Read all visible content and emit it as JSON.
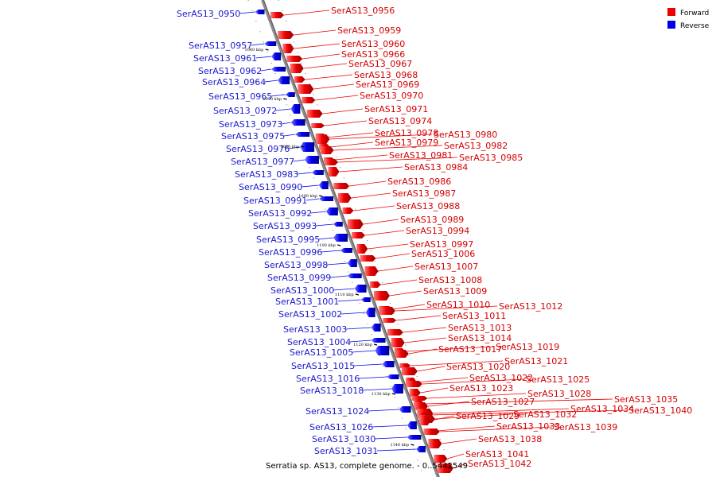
{
  "caption": "Serratia sp. AS13, complete genome. - 0..5442549",
  "legend": [
    {
      "label": "Forward",
      "color": "#ee0000"
    },
    {
      "label": "Reverse",
      "color": "#0000ee"
    }
  ],
  "colors": {
    "forward": "#ee0000",
    "reverse": "#0000ee",
    "backbone": "#8c8c8c"
  },
  "kbp_ticks": [
    "1060 kbp",
    "1070 kbp",
    "1080 kbp",
    "1090 kbp",
    "1100 kbp",
    "1110 kbp",
    "1120 kbp",
    "1130 kbp",
    "1140 kbp"
  ],
  "genes": [
    {
      "name": "SerAS13_0950",
      "strand": "reverse"
    },
    {
      "name": "SerAS13_0956",
      "strand": "forward"
    },
    {
      "name": "SerAS13_0959",
      "strand": "forward"
    },
    {
      "name": "SerAS13_0960",
      "strand": "forward"
    },
    {
      "name": "SerAS13_0957",
      "strand": "reverse"
    },
    {
      "name": "SerAS13_0966",
      "strand": "forward"
    },
    {
      "name": "SerAS13_0961",
      "strand": "reverse"
    },
    {
      "name": "SerAS13_0967",
      "strand": "forward"
    },
    {
      "name": "SerAS13_0962",
      "strand": "reverse"
    },
    {
      "name": "SerAS13_0968",
      "strand": "forward"
    },
    {
      "name": "SerAS13_0964",
      "strand": "reverse"
    },
    {
      "name": "SerAS13_0969",
      "strand": "forward"
    },
    {
      "name": "SerAS13_0965",
      "strand": "reverse"
    },
    {
      "name": "SerAS13_0970",
      "strand": "forward"
    },
    {
      "name": "SerAS13_0971",
      "strand": "forward"
    },
    {
      "name": "SerAS13_0972",
      "strand": "reverse"
    },
    {
      "name": "SerAS13_0974",
      "strand": "forward"
    },
    {
      "name": "SerAS13_0973",
      "strand": "reverse"
    },
    {
      "name": "SerAS13_0978",
      "strand": "forward"
    },
    {
      "name": "SerAS13_0980",
      "strand": "forward"
    },
    {
      "name": "SerAS13_0975",
      "strand": "reverse"
    },
    {
      "name": "SerAS13_0979",
      "strand": "forward"
    },
    {
      "name": "SerAS13_0982",
      "strand": "forward"
    },
    {
      "name": "SerAS13_0976",
      "strand": "reverse"
    },
    {
      "name": "SerAS13_0981",
      "strand": "forward"
    },
    {
      "name": "SerAS13_0985",
      "strand": "forward"
    },
    {
      "name": "SerAS13_0977",
      "strand": "reverse"
    },
    {
      "name": "SerAS13_0984",
      "strand": "forward"
    },
    {
      "name": "SerAS13_0983",
      "strand": "reverse"
    },
    {
      "name": "SerAS13_0986",
      "strand": "forward"
    },
    {
      "name": "SerAS13_0990",
      "strand": "reverse"
    },
    {
      "name": "SerAS13_0987",
      "strand": "forward"
    },
    {
      "name": "SerAS13_0991",
      "strand": "reverse"
    },
    {
      "name": "SerAS13_0988",
      "strand": "forward"
    },
    {
      "name": "SerAS13_0992",
      "strand": "reverse"
    },
    {
      "name": "SerAS13_0989",
      "strand": "forward"
    },
    {
      "name": "SerAS13_0993",
      "strand": "reverse"
    },
    {
      "name": "SerAS13_0994",
      "strand": "forward"
    },
    {
      "name": "SerAS13_0995",
      "strand": "reverse"
    },
    {
      "name": "SerAS13_0997",
      "strand": "forward"
    },
    {
      "name": "SerAS13_0996",
      "strand": "reverse"
    },
    {
      "name": "SerAS13_1006",
      "strand": "forward"
    },
    {
      "name": "SerAS13_0998",
      "strand": "reverse"
    },
    {
      "name": "SerAS13_1007",
      "strand": "forward"
    },
    {
      "name": "SerAS13_0999",
      "strand": "reverse"
    },
    {
      "name": "SerAS13_1008",
      "strand": "forward"
    },
    {
      "name": "SerAS13_1000",
      "strand": "reverse"
    },
    {
      "name": "SerAS13_1009",
      "strand": "forward"
    },
    {
      "name": "SerAS13_1001",
      "strand": "reverse"
    },
    {
      "name": "SerAS13_1010",
      "strand": "forward"
    },
    {
      "name": "SerAS13_1012",
      "strand": "forward"
    },
    {
      "name": "SerAS13_1002",
      "strand": "reverse"
    },
    {
      "name": "SerAS13_1011",
      "strand": "forward"
    },
    {
      "name": "SerAS13_1013",
      "strand": "forward"
    },
    {
      "name": "SerAS13_1003",
      "strand": "reverse"
    },
    {
      "name": "SerAS13_1014",
      "strand": "forward"
    },
    {
      "name": "SerAS13_1004",
      "strand": "reverse"
    },
    {
      "name": "SerAS13_1019",
      "strand": "forward"
    },
    {
      "name": "SerAS13_1017",
      "strand": "forward"
    },
    {
      "name": "SerAS13_1005",
      "strand": "reverse"
    },
    {
      "name": "SerAS13_1021",
      "strand": "forward"
    },
    {
      "name": "SerAS13_1015",
      "strand": "reverse"
    },
    {
      "name": "SerAS13_1020",
      "strand": "forward"
    },
    {
      "name": "SerAS13_1022",
      "strand": "forward"
    },
    {
      "name": "SerAS13_1016",
      "strand": "reverse"
    },
    {
      "name": "SerAS13_1025",
      "strand": "forward"
    },
    {
      "name": "SerAS13_1023",
      "strand": "forward"
    },
    {
      "name": "SerAS13_1018",
      "strand": "reverse"
    },
    {
      "name": "SerAS13_1028",
      "strand": "forward"
    },
    {
      "name": "SerAS13_1035",
      "strand": "forward"
    },
    {
      "name": "SerAS13_1027",
      "strand": "forward"
    },
    {
      "name": "SerAS13_1034",
      "strand": "forward"
    },
    {
      "name": "SerAS13_1040",
      "strand": "forward"
    },
    {
      "name": "SerAS13_1024",
      "strand": "reverse"
    },
    {
      "name": "SerAS13_1032",
      "strand": "forward"
    },
    {
      "name": "SerAS13_1029",
      "strand": "forward"
    },
    {
      "name": "SerAS13_1033",
      "strand": "forward"
    },
    {
      "name": "SerAS13_1039",
      "strand": "forward"
    },
    {
      "name": "SerAS13_1026",
      "strand": "reverse"
    },
    {
      "name": "SerAS13_1038",
      "strand": "forward"
    },
    {
      "name": "SerAS13_1030",
      "strand": "reverse"
    },
    {
      "name": "SerAS13_1031",
      "strand": "reverse"
    },
    {
      "name": "SerAS13_1041",
      "strand": "forward"
    },
    {
      "name": "SerAS13_1042",
      "strand": "forward"
    }
  ]
}
